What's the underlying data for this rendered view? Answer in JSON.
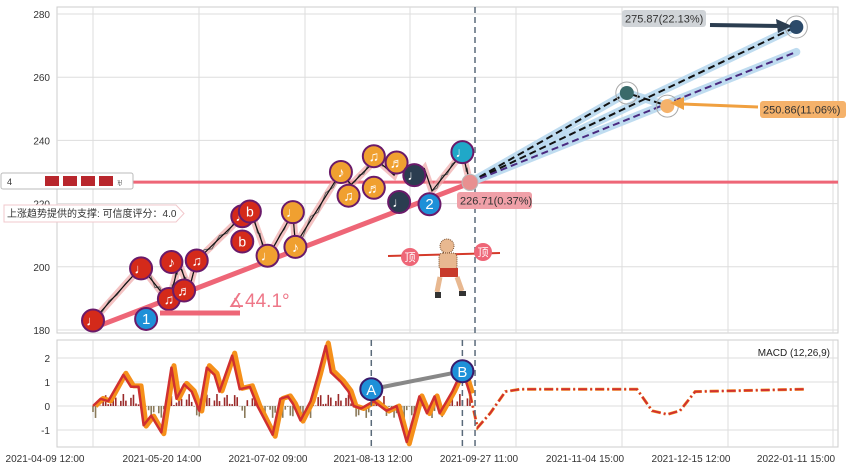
{
  "chart_data": [
    {
      "type": "line",
      "title": "",
      "ylim": [
        180,
        282
      ],
      "y_ticks": [
        180,
        200,
        220,
        240,
        260,
        280
      ],
      "x_unit": "days since 2021-04-09 12:00",
      "price_path": [
        [
          0,
          183
        ],
        [
          19,
          200
        ],
        [
          30,
          189
        ],
        [
          34,
          201
        ],
        [
          38,
          193
        ],
        [
          41,
          202
        ],
        [
          59,
          216
        ],
        [
          63,
          216
        ],
        [
          69,
          203
        ],
        [
          79,
          217
        ],
        [
          80,
          207
        ],
        [
          98,
          230
        ],
        [
          102,
          226
        ],
        [
          112,
          234
        ],
        [
          119,
          229
        ],
        [
          121,
          233
        ],
        [
          127,
          227
        ],
        [
          131,
          231
        ],
        [
          134,
          224
        ],
        [
          146,
          236
        ],
        [
          149,
          226.7
        ]
      ],
      "markers": [
        {
          "day": 0,
          "value": 183,
          "glyph": "♩",
          "color": "#d42a1a"
        },
        {
          "day": 19,
          "value": 199.5,
          "glyph": "♩",
          "color": "#d42a1a"
        },
        {
          "day": 30,
          "value": 189.8,
          "glyph": "♫",
          "color": "#d42a1a"
        },
        {
          "day": 31,
          "value": 201.5,
          "glyph": "♪",
          "color": "#d42a1a"
        },
        {
          "day": 36,
          "value": 192.5,
          "glyph": "♬",
          "color": "#d42a1a"
        },
        {
          "day": 41,
          "value": 202,
          "glyph": "♫",
          "color": "#d42a1a"
        },
        {
          "day": 59,
          "value": 216,
          "glyph": "♩",
          "color": "#d42a1a"
        },
        {
          "day": 62,
          "value": 217.5,
          "glyph": "b",
          "color": "#d42a1a"
        },
        {
          "day": 59,
          "value": 208,
          "glyph": "b",
          "color": "#d42a1a"
        },
        {
          "day": 69,
          "value": 203.5,
          "glyph": "♩",
          "color": "#f0a030"
        },
        {
          "day": 79,
          "value": 217.3,
          "glyph": "♩",
          "color": "#f0a030"
        },
        {
          "day": 80,
          "value": 206.3,
          "glyph": "♪",
          "color": "#f0a030"
        },
        {
          "day": 98,
          "value": 230,
          "glyph": "♪",
          "color": "#f0a030"
        },
        {
          "day": 101,
          "value": 222.5,
          "glyph": "♫",
          "color": "#f0a030"
        },
        {
          "day": 111,
          "value": 235,
          "glyph": "♫",
          "color": "#f0a030"
        },
        {
          "day": 111,
          "value": 225,
          "glyph": "♬",
          "color": "#f0a030"
        },
        {
          "day": 120,
          "value": 233,
          "glyph": "♬",
          "color": "#f0a030"
        },
        {
          "day": 127,
          "value": 229,
          "glyph": "♩",
          "color": "#2b3d50"
        },
        {
          "day": 121,
          "value": 220.5,
          "glyph": "♩",
          "color": "#2b3d50"
        },
        {
          "day": 146,
          "value": 236.3,
          "glyph": "♩",
          "color": "#20a8c8"
        },
        {
          "day": 21,
          "value": 183.5,
          "glyph": "1",
          "color": "#1e90d8"
        },
        {
          "day": 133,
          "value": 219.8,
          "glyph": "2",
          "color": "#1e90d8"
        }
      ],
      "support_line": {
        "start": [
          0,
          180.6
        ],
        "end": [
          149,
          226.5
        ],
        "color": "#ee6677"
      },
      "horizontal_line": {
        "value": 226.8,
        "color": "#ee6677"
      },
      "angle_label": "∡44.1°",
      "projections": [
        {
          "points": [
            [
              149,
              226.7
            ],
            [
              211,
              255
            ],
            [
              227,
              251
            ]
          ],
          "style": "black-dash"
        },
        {
          "points": [
            [
              149,
              226.7
            ],
            [
              278,
              276
            ]
          ],
          "style": "black-dash"
        },
        {
          "points": [
            [
              149,
              226.7
            ],
            [
              278,
              268
            ]
          ],
          "style": "purple-dash"
        }
      ],
      "targets": [
        {
          "label": "275.87(22.13%)",
          "day": 278,
          "value": 275.87,
          "color": "#d0d4d8"
        },
        {
          "label": "250.86(11.06%)",
          "day": 227,
          "value": 250.86,
          "color": "#f5b26b"
        },
        {
          "label": "226.71(0.37%)",
          "day": 149,
          "value": 226.71,
          "color": "#f0a0a8"
        }
      ],
      "pattern_markers": [
        {
          "label": "顶"
        },
        {
          "label": "顶"
        }
      ],
      "legend_count": "4",
      "support_tooltip": "上涨趋势提供的支撑: 可信度评分：4.0"
    },
    {
      "type": "line",
      "title": "MACD (12,26,9)",
      "ylim": [
        -1.75,
        2.7
      ],
      "y_ticks": [
        -1,
        0,
        1,
        2
      ],
      "x_ticks": [
        "2021-04-09 12:00",
        "2021-05-20 14:00",
        "2021-07-02 09:00",
        "2021-08-13 12:00",
        "2021-09-27 11:00",
        "2021-11-04 15:00",
        "2021-12-15 12:00",
        "2022-01-11 15:00"
      ],
      "macd": [
        [
          0,
          0
        ],
        [
          3,
          0.3
        ],
        [
          6,
          0.2
        ],
        [
          12,
          1.3
        ],
        [
          15,
          0.8
        ],
        [
          18,
          0.8
        ],
        [
          20,
          -0.8
        ],
        [
          23,
          -0.4
        ],
        [
          27,
          -1.1
        ],
        [
          31,
          1.6
        ],
        [
          33,
          0.3
        ],
        [
          36,
          0.9
        ],
        [
          39,
          0.6
        ],
        [
          42,
          -0.2
        ],
        [
          45,
          1.6
        ],
        [
          48,
          1.3
        ],
        [
          50,
          0.6
        ],
        [
          55,
          2.1
        ],
        [
          58,
          0.7
        ],
        [
          62,
          0.8
        ],
        [
          65,
          0
        ],
        [
          71,
          -1.2
        ],
        [
          74,
          0.3
        ],
        [
          77,
          0.4
        ],
        [
          79,
          0.1
        ],
        [
          82,
          -0.6
        ],
        [
          86,
          0.2
        ],
        [
          89,
          1.3
        ],
        [
          92,
          2.5
        ],
        [
          94,
          1.4
        ],
        [
          98,
          1.0
        ],
        [
          101,
          0.6
        ],
        [
          103,
          0
        ],
        [
          106,
          -0.1
        ],
        [
          111,
          0.2
        ],
        [
          116,
          -0.2
        ],
        [
          120,
          0
        ],
        [
          124,
          -1.5
        ],
        [
          129,
          0.4
        ],
        [
          132,
          -0.3
        ],
        [
          135,
          0.4
        ],
        [
          137,
          -0.3
        ],
        [
          142,
          0.6
        ],
        [
          146,
          1.5
        ],
        [
          149,
          0.5
        ]
      ],
      "forecast": [
        [
          149,
          0.5
        ],
        [
          152,
          -0.9
        ],
        [
          157,
          -0.3
        ],
        [
          163,
          0.6
        ],
        [
          169,
          0.7
        ],
        [
          215,
          0.7
        ],
        [
          221,
          -0.2
        ],
        [
          227,
          -0.35
        ],
        [
          232,
          -0.2
        ],
        [
          238,
          0.6
        ],
        [
          281,
          0.7
        ]
      ],
      "vlines_days": [
        110,
        146,
        151
      ],
      "annotations": [
        {
          "label": "A",
          "day": 110,
          "value": 0.7
        },
        {
          "label": "B",
          "day": 146,
          "value": 1.45
        }
      ]
    }
  ]
}
